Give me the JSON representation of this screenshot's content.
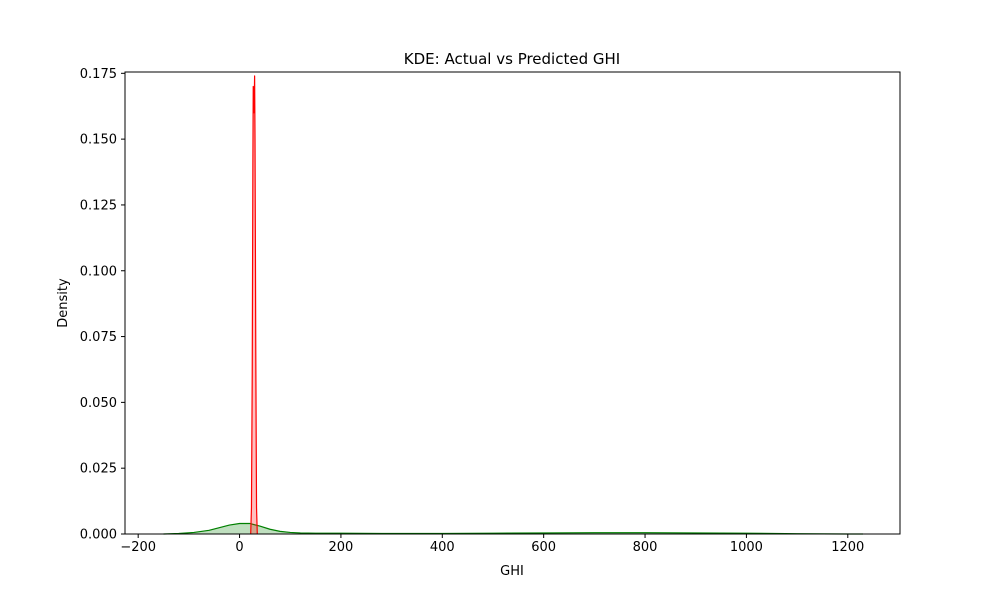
{
  "chart_data": {
    "type": "area",
    "title": "KDE: Actual vs Predicted GHI",
    "xlabel": "GHI",
    "ylabel": "Density",
    "xlim": [
      -226,
      1303
    ],
    "ylim": [
      0,
      0.1755
    ],
    "x_ticks": [
      -200,
      0,
      200,
      400,
      600,
      800,
      1000,
      1200
    ],
    "x_tick_labels": [
      "−200",
      "0",
      "200",
      "400",
      "600",
      "800",
      "1000",
      "1200"
    ],
    "y_ticks": [
      0,
      0.025,
      0.05,
      0.075,
      0.1,
      0.125,
      0.15,
      0.175
    ],
    "y_tick_labels": [
      "0.000",
      "0.025",
      "0.050",
      "0.075",
      "0.100",
      "0.125",
      "0.150",
      "0.175"
    ],
    "grid": false,
    "legend": "none",
    "series": [
      {
        "color": "#008000",
        "fill_opacity": 0.25,
        "x": [
          -150,
          -120,
          -90,
          -60,
          -40,
          -20,
          0,
          20,
          40,
          60,
          80,
          100,
          120,
          150,
          200,
          300,
          400,
          500,
          600,
          700,
          800,
          900,
          1000,
          1100,
          1200,
          1230
        ],
        "y": [
          0.0,
          0.0002,
          0.0006,
          0.0014,
          0.0024,
          0.0034,
          0.004,
          0.004,
          0.003,
          0.0018,
          0.001,
          0.0006,
          0.0004,
          0.0003,
          0.0003,
          0.0002,
          0.0002,
          0.0003,
          0.0004,
          0.0005,
          0.0005,
          0.0004,
          0.0003,
          0.0001,
          0.0,
          0.0
        ]
      },
      {
        "color": "#ff0000",
        "fill_opacity": 0.25,
        "x": [
          22,
          23.5,
          25,
          26.3,
          27,
          27.7,
          28.5,
          29,
          29.7,
          30.5,
          32,
          33.5,
          35
        ],
        "y": [
          0.0,
          0.01,
          0.06,
          0.14,
          0.17,
          0.168,
          0.16,
          0.165,
          0.174,
          0.15,
          0.07,
          0.01,
          0.0
        ]
      }
    ]
  }
}
